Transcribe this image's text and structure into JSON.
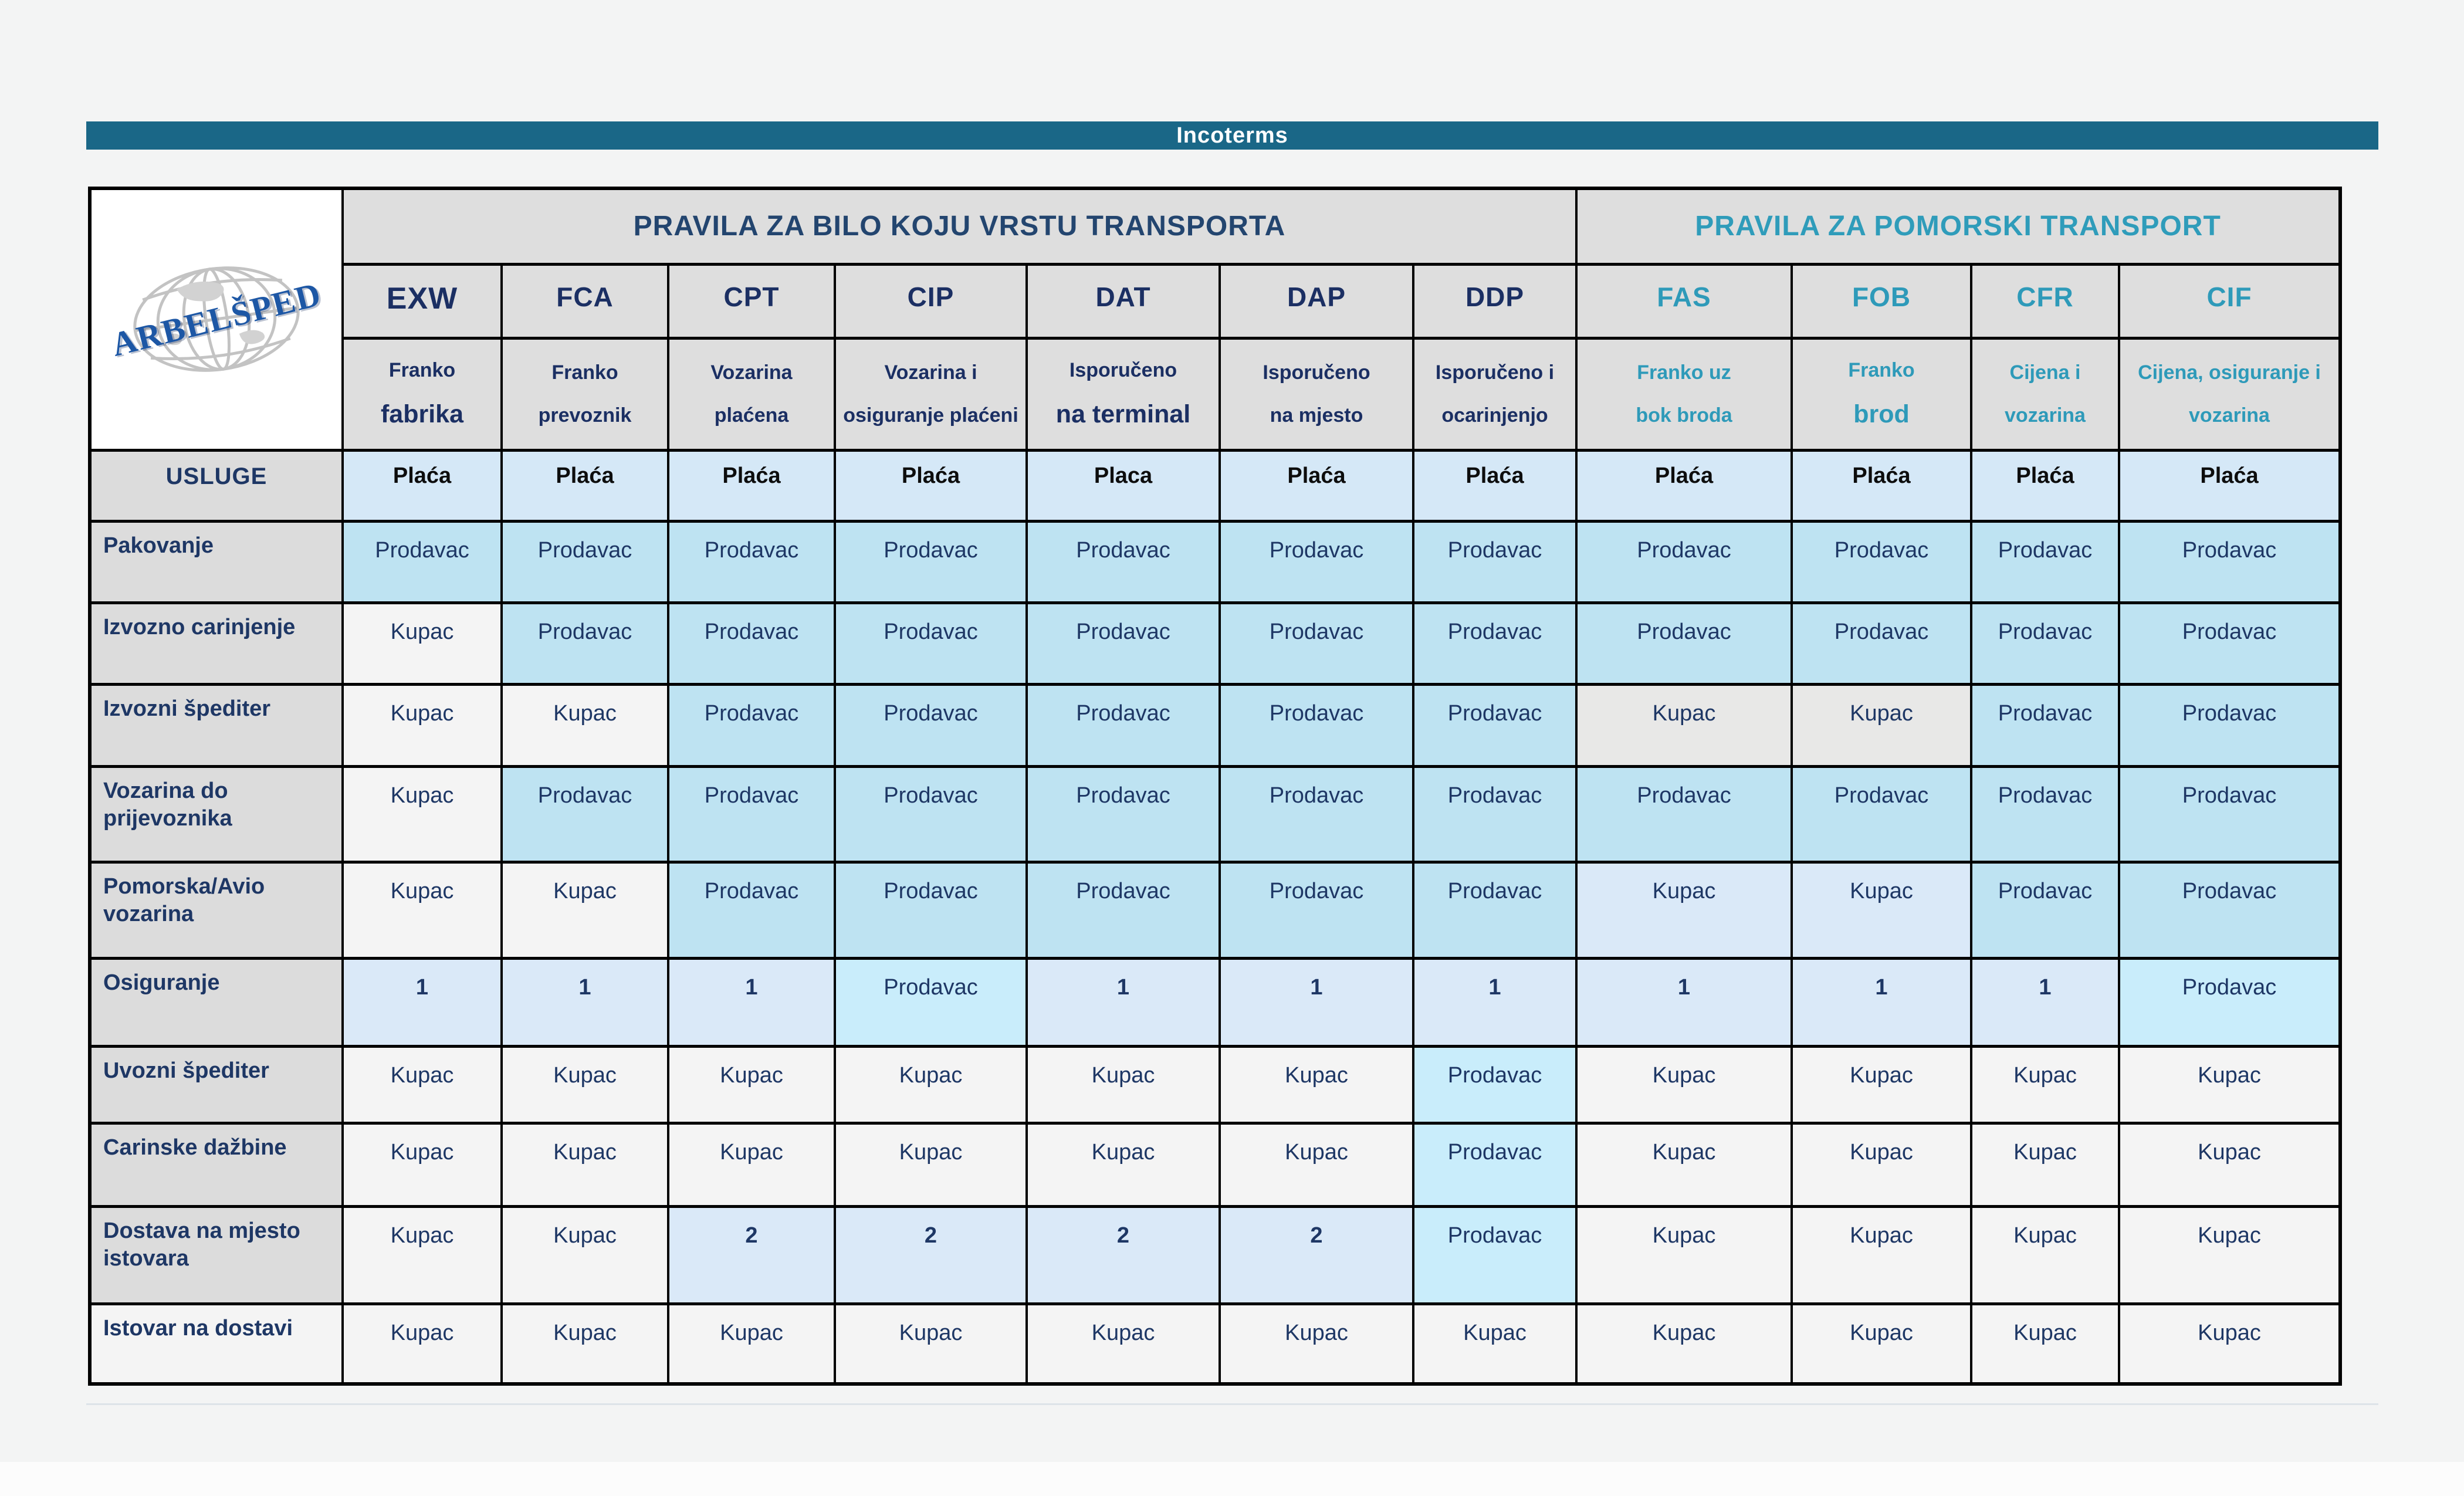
{
  "title": "Incoterms",
  "logo": {
    "text": "ARBELŠPED"
  },
  "header": {
    "any_transport": "PRAVILA ZA BILO KOJU VRSTU TRANSPORTA",
    "sea_transport": "PRAVILA ZA POMORSKI TRANSPORT",
    "services_label": "USLUGE"
  },
  "colors": {
    "title_bar": "#1a6787",
    "navy_text": "#1e3765",
    "teal_text": "#2e9ab9",
    "prodavac_cell": "#bee3f2",
    "prodavac_highlight_cell": "#c9edfb",
    "number_cell": "#dae9f8",
    "kupac_cell": "#f4f4f4",
    "kupac_gray_cell": "#e8e8e7",
    "pays_row": "#d5e8f7",
    "header_gray": "#dedede"
  },
  "columns": [
    {
      "code": "EXW",
      "group": "any",
      "sub1": "Franko",
      "sub2": "fabrika",
      "big2": true
    },
    {
      "code": "FCA",
      "group": "any",
      "sub1": "Franko",
      "sub2": "prevoznik",
      "big2": false
    },
    {
      "code": "CPT",
      "group": "any",
      "sub1": "Vozarina",
      "sub2": "plaćena",
      "big2": false
    },
    {
      "code": "CIP",
      "group": "any",
      "sub1": "Vozarina i",
      "sub2": "osiguranje plaćeni",
      "big2": false
    },
    {
      "code": "DAT",
      "group": "any",
      "sub1": "Isporučeno",
      "sub2": "na terminal",
      "big2": true
    },
    {
      "code": "DAP",
      "group": "any",
      "sub1": "Isporučeno",
      "sub2": "na mjesto",
      "big2": false
    },
    {
      "code": "DDP",
      "group": "any",
      "sub1": "Isporučeno i",
      "sub2": "ocarinjenjo",
      "big2": false
    },
    {
      "code": "FAS",
      "group": "sea",
      "sub1": "Franko uz",
      "sub2": "bok broda",
      "big2": false
    },
    {
      "code": "FOB",
      "group": "sea",
      "sub1": "Franko",
      "sub2": "brod",
      "big2": true
    },
    {
      "code": "CFR",
      "group": "sea",
      "sub1": "Cijena i",
      "sub2": "vozarina",
      "big2": false
    },
    {
      "code": "CIF",
      "group": "sea",
      "sub1": "Cijena, osiguranje i",
      "sub2": "vozarina",
      "big2": false
    }
  ],
  "pays_row": {
    "label": "USLUGE",
    "cells": [
      "Plaća",
      "Plaća",
      "Plaća",
      "Plaća",
      "Placa",
      "Plaća",
      "Plaća",
      "Plaća",
      "Plaća",
      "Plaća",
      "Plaća"
    ]
  },
  "rows": [
    {
      "label": "Pakovanje",
      "cells": [
        {
          "t": "Prodavac",
          "bg": "blue"
        },
        {
          "t": "Prodavac",
          "bg": "blue"
        },
        {
          "t": "Prodavac",
          "bg": "blue"
        },
        {
          "t": "Prodavac",
          "bg": "blue"
        },
        {
          "t": "Prodavac",
          "bg": "blue"
        },
        {
          "t": "Prodavac",
          "bg": "blue"
        },
        {
          "t": "Prodavac",
          "bg": "blue"
        },
        {
          "t": "Prodavac",
          "bg": "blue"
        },
        {
          "t": "Prodavac",
          "bg": "blue"
        },
        {
          "t": "Prodavac",
          "bg": "blue"
        },
        {
          "t": "Prodavac",
          "bg": "blue"
        }
      ]
    },
    {
      "label": "Izvozno carinjenje",
      "cells": [
        {
          "t": "Kupac",
          "bg": "white"
        },
        {
          "t": "Prodavac",
          "bg": "blue"
        },
        {
          "t": "Prodavac",
          "bg": "blue"
        },
        {
          "t": "Prodavac",
          "bg": "blue"
        },
        {
          "t": "Prodavac",
          "bg": "blue"
        },
        {
          "t": "Prodavac",
          "bg": "blue"
        },
        {
          "t": "Prodavac",
          "bg": "blue"
        },
        {
          "t": "Prodavac",
          "bg": "blue"
        },
        {
          "t": "Prodavac",
          "bg": "blue"
        },
        {
          "t": "Prodavac",
          "bg": "blue"
        },
        {
          "t": "Prodavac",
          "bg": "blue"
        }
      ]
    },
    {
      "label": "Izvozni  špediter",
      "cells": [
        {
          "t": "Kupac",
          "bg": "white"
        },
        {
          "t": "Kupac",
          "bg": "white"
        },
        {
          "t": "Prodavac",
          "bg": "blue"
        },
        {
          "t": "Prodavac",
          "bg": "blue"
        },
        {
          "t": "Prodavac",
          "bg": "blue"
        },
        {
          "t": "Prodavac",
          "bg": "blue"
        },
        {
          "t": "Prodavac",
          "bg": "blue"
        },
        {
          "t": "Kupac",
          "bg": "gray"
        },
        {
          "t": "Kupac",
          "bg": "gray"
        },
        {
          "t": "Prodavac",
          "bg": "blue"
        },
        {
          "t": "Prodavac",
          "bg": "blue"
        }
      ]
    },
    {
      "label": "Vozarina do prijevoznika",
      "cells": [
        {
          "t": "Kupac",
          "bg": "white"
        },
        {
          "t": "Prodavac",
          "bg": "blue"
        },
        {
          "t": "Prodavac",
          "bg": "blue"
        },
        {
          "t": "Prodavac",
          "bg": "blue"
        },
        {
          "t": "Prodavac",
          "bg": "blue"
        },
        {
          "t": "Prodavac",
          "bg": "blue"
        },
        {
          "t": "Prodavac",
          "bg": "blue"
        },
        {
          "t": "Prodavac",
          "bg": "blue"
        },
        {
          "t": "Prodavac",
          "bg": "blue"
        },
        {
          "t": "Prodavac",
          "bg": "blue"
        },
        {
          "t": "Prodavac",
          "bg": "blue"
        }
      ]
    },
    {
      "label": "Pomorska/Avio vozarina",
      "cells": [
        {
          "t": "Kupac",
          "bg": "white"
        },
        {
          "t": "Kupac",
          "bg": "white"
        },
        {
          "t": "Prodavac",
          "bg": "blue"
        },
        {
          "t": "Prodavac",
          "bg": "blue"
        },
        {
          "t": "Prodavac",
          "bg": "blue"
        },
        {
          "t": "Prodavac",
          "bg": "blue"
        },
        {
          "t": "Prodavac",
          "bg": "blue"
        },
        {
          "t": "Kupac",
          "bg": "pale"
        },
        {
          "t": "Kupac",
          "bg": "pale"
        },
        {
          "t": "Prodavac",
          "bg": "blue"
        },
        {
          "t": "Prodavac",
          "bg": "blue"
        }
      ]
    },
    {
      "label": "Osiguranje",
      "cells": [
        {
          "t": "1",
          "bg": "pale"
        },
        {
          "t": "1",
          "bg": "pale"
        },
        {
          "t": "1",
          "bg": "pale"
        },
        {
          "t": "Prodavac",
          "bg": "cyan"
        },
        {
          "t": "1",
          "bg": "pale"
        },
        {
          "t": "1",
          "bg": "pale"
        },
        {
          "t": "1",
          "bg": "pale"
        },
        {
          "t": "1",
          "bg": "pale"
        },
        {
          "t": "1",
          "bg": "pale"
        },
        {
          "t": "1",
          "bg": "pale"
        },
        {
          "t": "Prodavac",
          "bg": "cyan"
        }
      ]
    },
    {
      "label": "Uvozni  špediter",
      "cells": [
        {
          "t": "Kupac",
          "bg": "white"
        },
        {
          "t": "Kupac",
          "bg": "white"
        },
        {
          "t": "Kupac",
          "bg": "white"
        },
        {
          "t": "Kupac",
          "bg": "white"
        },
        {
          "t": "Kupac",
          "bg": "white"
        },
        {
          "t": "Kupac",
          "bg": "white"
        },
        {
          "t": "Prodavac",
          "bg": "cyan"
        },
        {
          "t": "Kupac",
          "bg": "white"
        },
        {
          "t": "Kupac",
          "bg": "white"
        },
        {
          "t": "Kupac",
          "bg": "white"
        },
        {
          "t": "Kupac",
          "bg": "white"
        }
      ]
    },
    {
      "label": "Carinske dažbine",
      "cells": [
        {
          "t": "Kupac",
          "bg": "white"
        },
        {
          "t": "Kupac",
          "bg": "white"
        },
        {
          "t": "Kupac",
          "bg": "white"
        },
        {
          "t": "Kupac",
          "bg": "white"
        },
        {
          "t": "Kupac",
          "bg": "white"
        },
        {
          "t": "Kupac",
          "bg": "white"
        },
        {
          "t": "Prodavac",
          "bg": "cyan"
        },
        {
          "t": "Kupac",
          "bg": "white"
        },
        {
          "t": "Kupac",
          "bg": "white"
        },
        {
          "t": "Kupac",
          "bg": "white"
        },
        {
          "t": "Kupac",
          "bg": "white"
        }
      ]
    },
    {
      "label": "Dostava na mjesto istovara",
      "cells": [
        {
          "t": "Kupac",
          "bg": "white"
        },
        {
          "t": "Kupac",
          "bg": "white"
        },
        {
          "t": "2",
          "bg": "pale"
        },
        {
          "t": "2",
          "bg": "pale"
        },
        {
          "t": "2",
          "bg": "pale"
        },
        {
          "t": "2",
          "bg": "pale"
        },
        {
          "t": "Prodavac",
          "bg": "cyan"
        },
        {
          "t": "Kupac",
          "bg": "white"
        },
        {
          "t": "Kupac",
          "bg": "white"
        },
        {
          "t": "Kupac",
          "bg": "white"
        },
        {
          "t": "Kupac",
          "bg": "white"
        }
      ]
    },
    {
      "label": "Istovar na dostavi",
      "cells": [
        {
          "t": "Kupac",
          "bg": "white"
        },
        {
          "t": "Kupac",
          "bg": "white"
        },
        {
          "t": "Kupac",
          "bg": "white"
        },
        {
          "t": "Kupac",
          "bg": "white"
        },
        {
          "t": "Kupac",
          "bg": "white"
        },
        {
          "t": "Kupac",
          "bg": "white"
        },
        {
          "t": "Kupac",
          "bg": "white"
        },
        {
          "t": "Kupac",
          "bg": "white"
        },
        {
          "t": "Kupac",
          "bg": "white"
        },
        {
          "t": "Kupac",
          "bg": "white"
        },
        {
          "t": "Kupac",
          "bg": "white"
        }
      ]
    }
  ]
}
